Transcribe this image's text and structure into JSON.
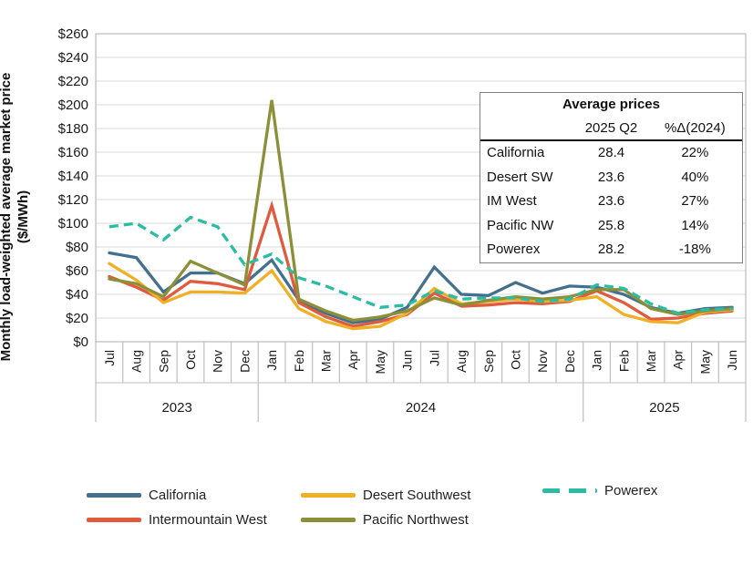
{
  "y_axis": {
    "title_line1": "Monthly load-weighted average market price",
    "title_line2": "($/MWh)"
  },
  "chart_data": {
    "type": "line",
    "title": "",
    "ylabel": "Monthly load-weighted average market price ($/MWh)",
    "xlabel": "",
    "ylim": [
      0,
      260
    ],
    "ytick_step": 20,
    "ytick_prefix": "$",
    "grid": true,
    "legend_position": "bottom",
    "x_months": [
      "Jul",
      "Aug",
      "Sep",
      "Oct",
      "Nov",
      "Dec",
      "Jan",
      "Feb",
      "Mar",
      "Apr",
      "May",
      "Jun",
      "Jul",
      "Aug",
      "Sep",
      "Oct",
      "Nov",
      "Dec",
      "Jan",
      "Feb",
      "Mar",
      "Apr",
      "May",
      "Jun"
    ],
    "year_groups": [
      {
        "label": "2023",
        "start": 0,
        "end": 5
      },
      {
        "label": "2024",
        "start": 6,
        "end": 17
      },
      {
        "label": "2025",
        "start": 18,
        "end": 23
      }
    ],
    "series": [
      {
        "name": "California",
        "color": "#44708d",
        "dash": null,
        "values": [
          75,
          71,
          42,
          58,
          58,
          49,
          69,
          35,
          24,
          16,
          19,
          29,
          63,
          40,
          39,
          50,
          41,
          47,
          46,
          40,
          29,
          24,
          28,
          29
        ]
      },
      {
        "name": "Intermountain West",
        "color": "#e05a3d",
        "dash": null,
        "values": [
          55,
          46,
          35,
          51,
          49,
          44,
          115,
          33,
          21,
          13,
          17,
          23,
          41,
          30,
          31,
          33,
          32,
          34,
          43,
          33,
          19,
          20,
          24,
          26
        ]
      },
      {
        "name": "Desert Southwest",
        "color": "#efb025",
        "dash": null,
        "values": [
          66,
          52,
          33,
          42,
          42,
          41,
          60,
          28,
          17,
          11,
          13,
          24,
          45,
          32,
          34,
          36,
          34,
          35,
          38,
          23,
          17,
          16,
          25,
          27
        ]
      },
      {
        "name": "Pacific Northwest",
        "color": "#8b9038",
        "dash": null,
        "values": [
          53,
          49,
          38,
          68,
          58,
          48,
          204,
          36,
          26,
          18,
          21,
          26,
          37,
          31,
          35,
          38,
          36,
          38,
          44,
          44,
          28,
          23,
          26,
          28
        ]
      },
      {
        "name": "Powerex",
        "color": "#2abda3",
        "dash": "10 6",
        "values": [
          97,
          100,
          86,
          105,
          97,
          65,
          74,
          54,
          47,
          38,
          29,
          31,
          43,
          36,
          37,
          37,
          34,
          36,
          48,
          45,
          32,
          24,
          27,
          28
        ]
      }
    ]
  },
  "inset_table": {
    "title": "Average prices",
    "columns": [
      "",
      "2025 Q2",
      "%Δ(2024)"
    ],
    "rows": [
      {
        "label": "California",
        "q2": "28.4",
        "pct": "22%"
      },
      {
        "label": "Desert SW",
        "q2": "23.6",
        "pct": "40%"
      },
      {
        "label": "IM West",
        "q2": "23.6",
        "pct": "27%"
      },
      {
        "label": "Pacific NW",
        "q2": "25.8",
        "pct": "14%"
      },
      {
        "label": "Powerex",
        "q2": "28.2",
        "pct": "-18%"
      }
    ]
  },
  "legend": {
    "items": [
      {
        "label": "California",
        "series_index": 0
      },
      {
        "label": "Desert Southwest",
        "series_index": 2
      },
      {
        "label": "Powerex",
        "series_index": 4
      },
      {
        "label": "Intermountain West",
        "series_index": 1
      },
      {
        "label": "Pacific Northwest",
        "series_index": 3
      }
    ]
  }
}
